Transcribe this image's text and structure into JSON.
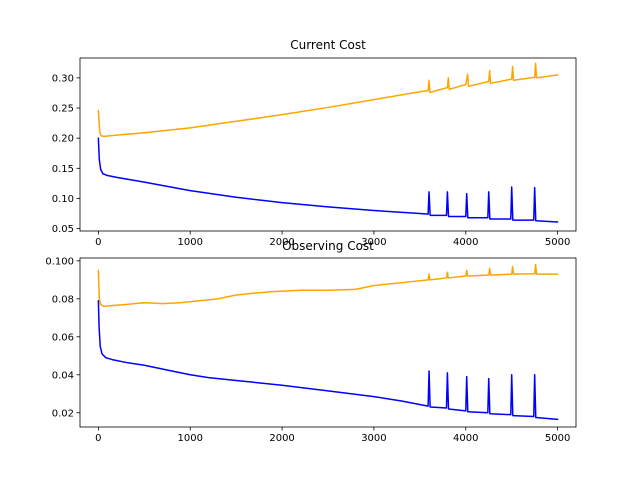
{
  "chart_data": [
    {
      "type": "line",
      "title": "Current Cost",
      "xlabel": "",
      "ylabel": "",
      "xlim": [
        -200,
        5200
      ],
      "ylim": [
        0.046,
        0.333
      ],
      "xticks": [
        0,
        1000,
        2000,
        3000,
        4000,
        5000
      ],
      "xtick_labels": [
        "0",
        "1000",
        "2000",
        "3000",
        "4000",
        "5000"
      ],
      "yticks": [
        0.05,
        0.1,
        0.15,
        0.2,
        0.25,
        0.3
      ],
      "ytick_labels": [
        "0.05",
        "0.10",
        "0.15",
        "0.20",
        "0.25",
        "0.30"
      ],
      "grid": false,
      "series": [
        {
          "color": "#ffa500",
          "points": [
            [
              0,
              0.246
            ],
            [
              15,
              0.21
            ],
            [
              30,
              0.204
            ],
            [
              60,
              0.203
            ],
            [
              200,
              0.205
            ],
            [
              500,
              0.209
            ],
            [
              1000,
              0.217
            ],
            [
              1500,
              0.228
            ],
            [
              2000,
              0.239
            ],
            [
              2500,
              0.251
            ],
            [
              3000,
              0.264
            ],
            [
              3500,
              0.277
            ],
            [
              3590,
              0.279
            ],
            [
              3600,
              0.296
            ],
            [
              3610,
              0.276
            ],
            [
              3800,
              0.284
            ],
            [
              3810,
              0.3
            ],
            [
              3820,
              0.281
            ],
            [
              4000,
              0.289
            ],
            [
              4020,
              0.306
            ],
            [
              4030,
              0.286
            ],
            [
              4250,
              0.294
            ],
            [
              4260,
              0.312
            ],
            [
              4270,
              0.291
            ],
            [
              4500,
              0.298
            ],
            [
              4510,
              0.319
            ],
            [
              4520,
              0.296
            ],
            [
              4750,
              0.301
            ],
            [
              4760,
              0.324
            ],
            [
              4770,
              0.3
            ],
            [
              5000,
              0.305
            ]
          ]
        },
        {
          "color": "#0000ff",
          "points": [
            [
              0,
              0.2
            ],
            [
              10,
              0.165
            ],
            [
              25,
              0.148
            ],
            [
              50,
              0.141
            ],
            [
              100,
              0.138
            ],
            [
              200,
              0.135
            ],
            [
              500,
              0.127
            ],
            [
              1000,
              0.113
            ],
            [
              1500,
              0.102
            ],
            [
              2000,
              0.093
            ],
            [
              2500,
              0.086
            ],
            [
              3000,
              0.08
            ],
            [
              3500,
              0.075
            ],
            [
              3590,
              0.074
            ],
            [
              3600,
              0.111
            ],
            [
              3612,
              0.072
            ],
            [
              3790,
              0.072
            ],
            [
              3800,
              0.111
            ],
            [
              3812,
              0.07
            ],
            [
              4000,
              0.07
            ],
            [
              4010,
              0.108
            ],
            [
              4022,
              0.068
            ],
            [
              4240,
              0.068
            ],
            [
              4250,
              0.111
            ],
            [
              4262,
              0.066
            ],
            [
              4490,
              0.066
            ],
            [
              4500,
              0.119
            ],
            [
              4512,
              0.064
            ],
            [
              4740,
              0.064
            ],
            [
              4750,
              0.118
            ],
            [
              4762,
              0.063
            ],
            [
              5000,
              0.061
            ]
          ]
        }
      ]
    },
    {
      "type": "line",
      "title": "Observing Cost",
      "xlabel": "",
      "ylabel": "",
      "xlim": [
        -200,
        5200
      ],
      "ylim": [
        0.0125,
        0.1015
      ],
      "xticks": [
        0,
        1000,
        2000,
        3000,
        4000,
        5000
      ],
      "xtick_labels": [
        "0",
        "1000",
        "2000",
        "3000",
        "4000",
        "5000"
      ],
      "yticks": [
        0.02,
        0.04,
        0.06,
        0.08,
        0.1
      ],
      "ytick_labels": [
        "0.02",
        "0.04",
        "0.06",
        "0.08",
        "0.100"
      ],
      "grid": false,
      "series": [
        {
          "color": "#ffa500",
          "points": [
            [
              0,
              0.095
            ],
            [
              10,
              0.08
            ],
            [
              25,
              0.077
            ],
            [
              60,
              0.076
            ],
            [
              150,
              0.0765
            ],
            [
              300,
              0.077
            ],
            [
              500,
              0.078
            ],
            [
              700,
              0.0775
            ],
            [
              900,
              0.078
            ],
            [
              1100,
              0.079
            ],
            [
              1300,
              0.08
            ],
            [
              1500,
              0.082
            ],
            [
              1700,
              0.083
            ],
            [
              1900,
              0.0838
            ],
            [
              2200,
              0.0845
            ],
            [
              2500,
              0.0845
            ],
            [
              2800,
              0.085
            ],
            [
              3000,
              0.087
            ],
            [
              3300,
              0.0885
            ],
            [
              3590,
              0.09
            ],
            [
              3600,
              0.093
            ],
            [
              3610,
              0.09
            ],
            [
              3790,
              0.091
            ],
            [
              3800,
              0.094
            ],
            [
              3810,
              0.091
            ],
            [
              4000,
              0.092
            ],
            [
              4010,
              0.095
            ],
            [
              4020,
              0.092
            ],
            [
              4250,
              0.0925
            ],
            [
              4260,
              0.096
            ],
            [
              4270,
              0.0925
            ],
            [
              4500,
              0.093
            ],
            [
              4510,
              0.097
            ],
            [
              4520,
              0.093
            ],
            [
              4750,
              0.0932
            ],
            [
              4760,
              0.098
            ],
            [
              4770,
              0.093
            ],
            [
              5000,
              0.093
            ]
          ]
        },
        {
          "color": "#0000ff",
          "points": [
            [
              0,
              0.079
            ],
            [
              8,
              0.065
            ],
            [
              20,
              0.055
            ],
            [
              40,
              0.051
            ],
            [
              80,
              0.049
            ],
            [
              150,
              0.048
            ],
            [
              300,
              0.0465
            ],
            [
              500,
              0.045
            ],
            [
              800,
              0.042
            ],
            [
              1000,
              0.04
            ],
            [
              1200,
              0.0385
            ],
            [
              1500,
              0.037
            ],
            [
              2000,
              0.0345
            ],
            [
              2500,
              0.0315
            ],
            [
              3000,
              0.0285
            ],
            [
              3300,
              0.0262
            ],
            [
              3590,
              0.0235
            ],
            [
              3600,
              0.042
            ],
            [
              3612,
              0.023
            ],
            [
              3790,
              0.0225
            ],
            [
              3800,
              0.041
            ],
            [
              3812,
              0.022
            ],
            [
              4000,
              0.021
            ],
            [
              4010,
              0.039
            ],
            [
              4022,
              0.0205
            ],
            [
              4240,
              0.02
            ],
            [
              4250,
              0.038
            ],
            [
              4262,
              0.0195
            ],
            [
              4490,
              0.019
            ],
            [
              4500,
              0.04
            ],
            [
              4512,
              0.0185
            ],
            [
              4740,
              0.018
            ],
            [
              4750,
              0.04
            ],
            [
              4762,
              0.0175
            ],
            [
              5000,
              0.0165
            ]
          ]
        }
      ]
    }
  ]
}
